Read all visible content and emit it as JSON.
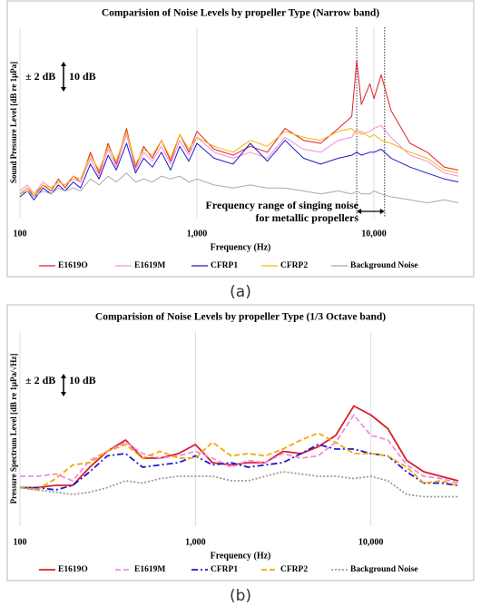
{
  "chart_data": [
    {
      "type": "line",
      "title": "Comparision of Noise Levels by propeller Type (Narrow band)",
      "caption": "(a)",
      "x_label": "Frequency (Hz)",
      "y_label": "Sound Pressure Level [dB re 1μPa]",
      "log_x": true,
      "xlim": [
        100,
        30000
      ],
      "ylim": [
        0,
        64
      ],
      "xticks": [
        100,
        {
          "value": 1000,
          "label": "1,000"
        },
        {
          "value": 10000,
          "label": "10,000"
        }
      ],
      "grid": true,
      "annotations": [
        "± 2 dB",
        "10 dB",
        "Frequency range of singing noise",
        "for metallic propellers"
      ],
      "vlines": [
        8000,
        11500
      ],
      "x": [
        100,
        110,
        120,
        135,
        150,
        165,
        180,
        200,
        220,
        250,
        280,
        315,
        350,
        400,
        450,
        500,
        560,
        630,
        710,
        800,
        900,
        1000,
        1250,
        1600,
        2000,
        2500,
        3150,
        4000,
        5000,
        6300,
        7500,
        8000,
        8500,
        9500,
        10000,
        11000,
        12500,
        16000,
        20000,
        25000,
        30000
      ],
      "series": [
        {
          "name": "E1619O",
          "color": "#e0202a",
          "style": "solid",
          "values": [
            8,
            10,
            7,
            11,
            9,
            13,
            10,
            14,
            12,
            22,
            15,
            25,
            18,
            30,
            17,
            24,
            20,
            26,
            19,
            28,
            22,
            29,
            23,
            21,
            24,
            22,
            30,
            26,
            25,
            30,
            34,
            53,
            38,
            45,
            40,
            48,
            36,
            25,
            22,
            17,
            16
          ]
        },
        {
          "name": "E1619M",
          "color": "#f08ce0",
          "style": "solid",
          "values": [
            9,
            11,
            8,
            12,
            10,
            12,
            11,
            13,
            12,
            20,
            14,
            23,
            17,
            28,
            16,
            22,
            19,
            24,
            18,
            26,
            21,
            27,
            22,
            20,
            22,
            20,
            27,
            23,
            22,
            26,
            27,
            30,
            28,
            29,
            30,
            31,
            27,
            21,
            19,
            15,
            14
          ]
        },
        {
          "name": "CFRP1",
          "color": "#1a1acc",
          "style": "solid",
          "values": [
            7,
            9,
            6,
            10,
            8,
            11,
            9,
            12,
            10,
            18,
            13,
            21,
            16,
            25,
            15,
            20,
            17,
            22,
            16,
            24,
            19,
            25,
            20,
            18,
            25,
            19,
            26,
            20,
            18,
            20,
            21,
            22,
            21,
            22,
            22,
            23,
            20,
            17,
            15,
            13,
            12
          ]
        },
        {
          "name": "CFRP2",
          "color": "#f5b800",
          "style": "solid",
          "values": [
            8,
            10,
            8,
            11,
            10,
            12,
            11,
            14,
            13,
            21,
            16,
            24,
            19,
            29,
            18,
            23,
            21,
            26,
            20,
            28,
            23,
            27,
            24,
            22,
            26,
            24,
            29,
            27,
            26,
            29,
            30,
            28,
            29,
            27,
            28,
            26,
            25,
            22,
            20,
            16,
            15
          ]
        },
        {
          "name": "Background Noise",
          "color": "#aaaaaa",
          "style": "solid",
          "values": [
            8,
            9,
            7,
            9,
            8,
            10,
            9,
            10,
            9,
            13,
            11,
            14,
            12,
            15,
            12,
            13,
            12,
            14,
            13,
            14,
            12,
            13,
            11,
            10,
            11,
            10,
            10,
            9,
            8,
            9,
            8,
            9,
            8,
            8,
            9,
            8,
            7,
            6,
            5,
            6,
            5
          ]
        }
      ]
    },
    {
      "type": "line",
      "title": "Comparision of Noise Levels by propeller Type (1/3 Octave band)",
      "caption": "(b)",
      "x_label": "Frequency (Hz)",
      "y_label": "Pressure Spectrum Level [dB re 1μPa/√Hz]",
      "log_x": true,
      "xlim": [
        100,
        31500
      ],
      "ylim": [
        0,
        86
      ],
      "xticks": [
        100,
        {
          "value": 1000,
          "label": "1,000"
        },
        {
          "value": 10000,
          "label": "10,000"
        }
      ],
      "grid": true,
      "annotations": [
        "± 2 dB",
        "10 dB"
      ],
      "x": [
        100,
        125,
        160,
        200,
        250,
        315,
        400,
        500,
        630,
        800,
        1000,
        1250,
        1600,
        2000,
        2500,
        3150,
        4000,
        5000,
        6300,
        8000,
        10000,
        12500,
        16000,
        20000,
        25000,
        31500
      ],
      "series": [
        {
          "name": "E1619O",
          "color": "#d9202a",
          "style": "solid",
          "values": [
            17,
            17,
            18,
            18,
            26,
            33,
            38,
            30,
            30,
            32,
            36,
            28,
            27,
            28,
            28,
            33,
            32,
            35,
            40,
            53,
            49,
            43,
            29,
            24,
            22,
            20
          ]
        },
        {
          "name": "E1619M",
          "color": "#f08ce0",
          "style": "dashed",
          "values": [
            22,
            22,
            23,
            20,
            29,
            33,
            37,
            32,
            30,
            31,
            33,
            30,
            26,
            29,
            28,
            32,
            30,
            31,
            37,
            49,
            40,
            38,
            27,
            22,
            21,
            19
          ]
        },
        {
          "name": "CFRP1",
          "color": "#1a1acc",
          "style": "dashdot",
          "values": [
            17,
            17,
            16,
            18,
            24,
            31,
            32,
            26,
            27,
            28,
            31,
            27,
            28,
            26,
            27,
            28,
            32,
            36,
            34,
            34,
            32,
            31,
            24,
            19,
            19,
            18
          ]
        },
        {
          "name": "CFRP2",
          "color": "#f5a800",
          "style": "dashed",
          "values": [
            17,
            16,
            21,
            27,
            28,
            33,
            36,
            30,
            33,
            30,
            30,
            37,
            31,
            32,
            31,
            34,
            38,
            41,
            37,
            32,
            32,
            31,
            26,
            19,
            20,
            18
          ]
        },
        {
          "name": "Background Noise",
          "color": "#999999",
          "style": "dotted",
          "values": [
            17,
            16,
            15,
            14,
            15,
            17,
            20,
            19,
            21,
            22,
            22,
            22,
            20,
            20,
            22,
            24,
            23,
            22,
            22,
            21,
            22,
            20,
            14,
            13,
            13,
            13
          ]
        }
      ]
    }
  ]
}
